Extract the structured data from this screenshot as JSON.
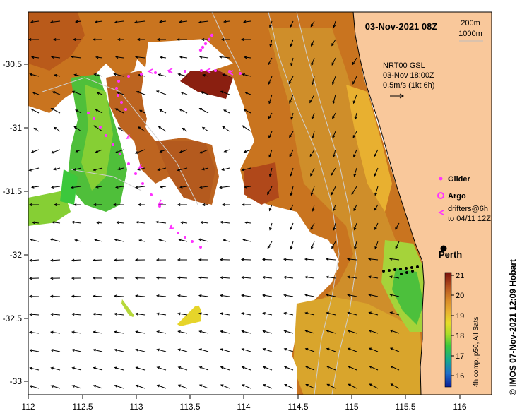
{
  "map": {
    "title": "03-Nov-2021 08Z",
    "depth_labels": [
      "200m",
      "1000m"
    ],
    "current_note": {
      "line1": "NRT00 GSL",
      "line2": "03-Nov 18:00Z",
      "line3": "0.5m/s (1kt 6h)"
    },
    "city": "Perth",
    "legend": {
      "glider": "Glider",
      "argo": "Argo",
      "drifters_line1": "drifters@6h",
      "drifters_line2": "to 04/11 12Z"
    },
    "credit": "©  IMOS 07-Nov-2021 12:09 Hobart",
    "colorbar": {
      "caption": "4h comp, p50, All Sats",
      "ticks": [
        "21",
        "20",
        "19",
        "18",
        "17",
        "16"
      ],
      "colors": [
        "#7a0f0a",
        "#b4501e",
        "#d88a28",
        "#e8b030",
        "#e6dc2a",
        "#a8dc28",
        "#3cc83c",
        "#14aa8c",
        "#1e6ec8",
        "#0a1e96"
      ]
    },
    "x_ticks": [
      "112",
      "112.5",
      "113",
      "113.5",
      "114",
      "114.5",
      "115",
      "115.5",
      "116"
    ],
    "y_ticks": [
      "-30.5",
      "-31",
      "-31.5",
      "-32",
      "-32.5",
      "-33"
    ],
    "land_color": "#f9c89b",
    "glider_color": "#ff33ff"
  }
}
